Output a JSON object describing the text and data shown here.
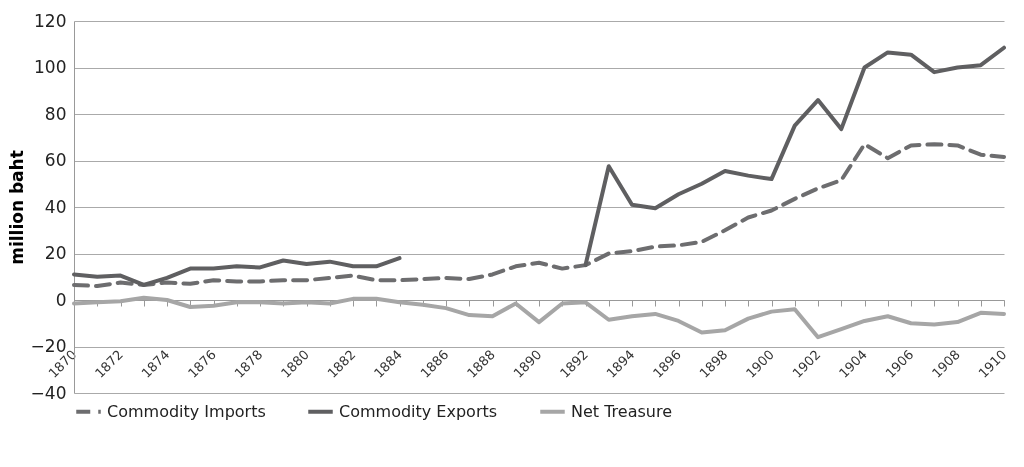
{
  "chart_data": {
    "type": "line",
    "ylabel": "million baht",
    "categories": [
      "1870",
      null,
      "1872",
      null,
      "1874",
      null,
      "1876",
      null,
      "1878",
      null,
      "1880",
      null,
      "1882",
      null,
      "1884",
      null,
      "1886",
      null,
      "1888",
      null,
      "1890",
      null,
      "1892",
      null,
      "1894",
      null,
      "1896",
      null,
      "1898",
      null,
      "1900",
      null,
      "1902",
      null,
      "1904",
      null,
      "1906",
      null,
      "1908",
      null,
      "1910"
    ],
    "series": [
      {
        "name": "Commodity Imports",
        "color": "#6d6d6f",
        "line_style": "dashed",
        "values": [
          6.5,
          6,
          7.5,
          6.5,
          7.5,
          7,
          8.5,
          8,
          8,
          8.5,
          8.5,
          9.5,
          10.5,
          8.5,
          8.5,
          9,
          9.5,
          9,
          11,
          14.5,
          16,
          13.5,
          15,
          20,
          21,
          23,
          23.5,
          25,
          30,
          35.5,
          38.5,
          43.5,
          48,
          51.5,
          67,
          61,
          66.5,
          67,
          66.5,
          62.5,
          61.5
        ]
      },
      {
        "name": "Commodity Exports",
        "color": "#5f5f61",
        "line_style": "solid",
        "values": [
          11,
          10,
          10.5,
          6.5,
          9.5,
          13.5,
          13.5,
          14.5,
          14,
          17,
          15.5,
          16.5,
          14.5,
          14.5,
          18,
          null,
          null,
          null,
          null,
          null,
          null,
          null,
          15,
          57.5,
          41,
          39.5,
          45.5,
          50,
          55.5,
          53.5,
          52,
          75,
          86,
          73.5,
          100,
          106.5,
          105.5,
          98,
          100,
          101,
          108.5
        ]
      },
      {
        "name": "Net Treasure",
        "color": "#a6a6a6",
        "line_style": "solid",
        "values": [
          -1.5,
          -1,
          -0.5,
          1,
          0,
          -3,
          -2.5,
          -1,
          -1,
          -1.5,
          -1,
          -1.5,
          0.5,
          0.5,
          -1,
          -2,
          -3.5,
          -6.5,
          -7,
          -1.5,
          -9.5,
          -1.5,
          -1,
          -8.5,
          -7,
          -6,
          -9,
          -14,
          -13,
          -8,
          -5,
          -4,
          -16,
          -12.5,
          -9,
          -7,
          -10,
          -10.5,
          -9.5,
          -5.5,
          -6
        ]
      }
    ],
    "ylim": [
      -40,
      120
    ],
    "yticks": [
      -40,
      -20,
      0,
      20,
      40,
      60,
      80,
      100,
      120
    ],
    "grid": "y",
    "legend": "bottom"
  }
}
